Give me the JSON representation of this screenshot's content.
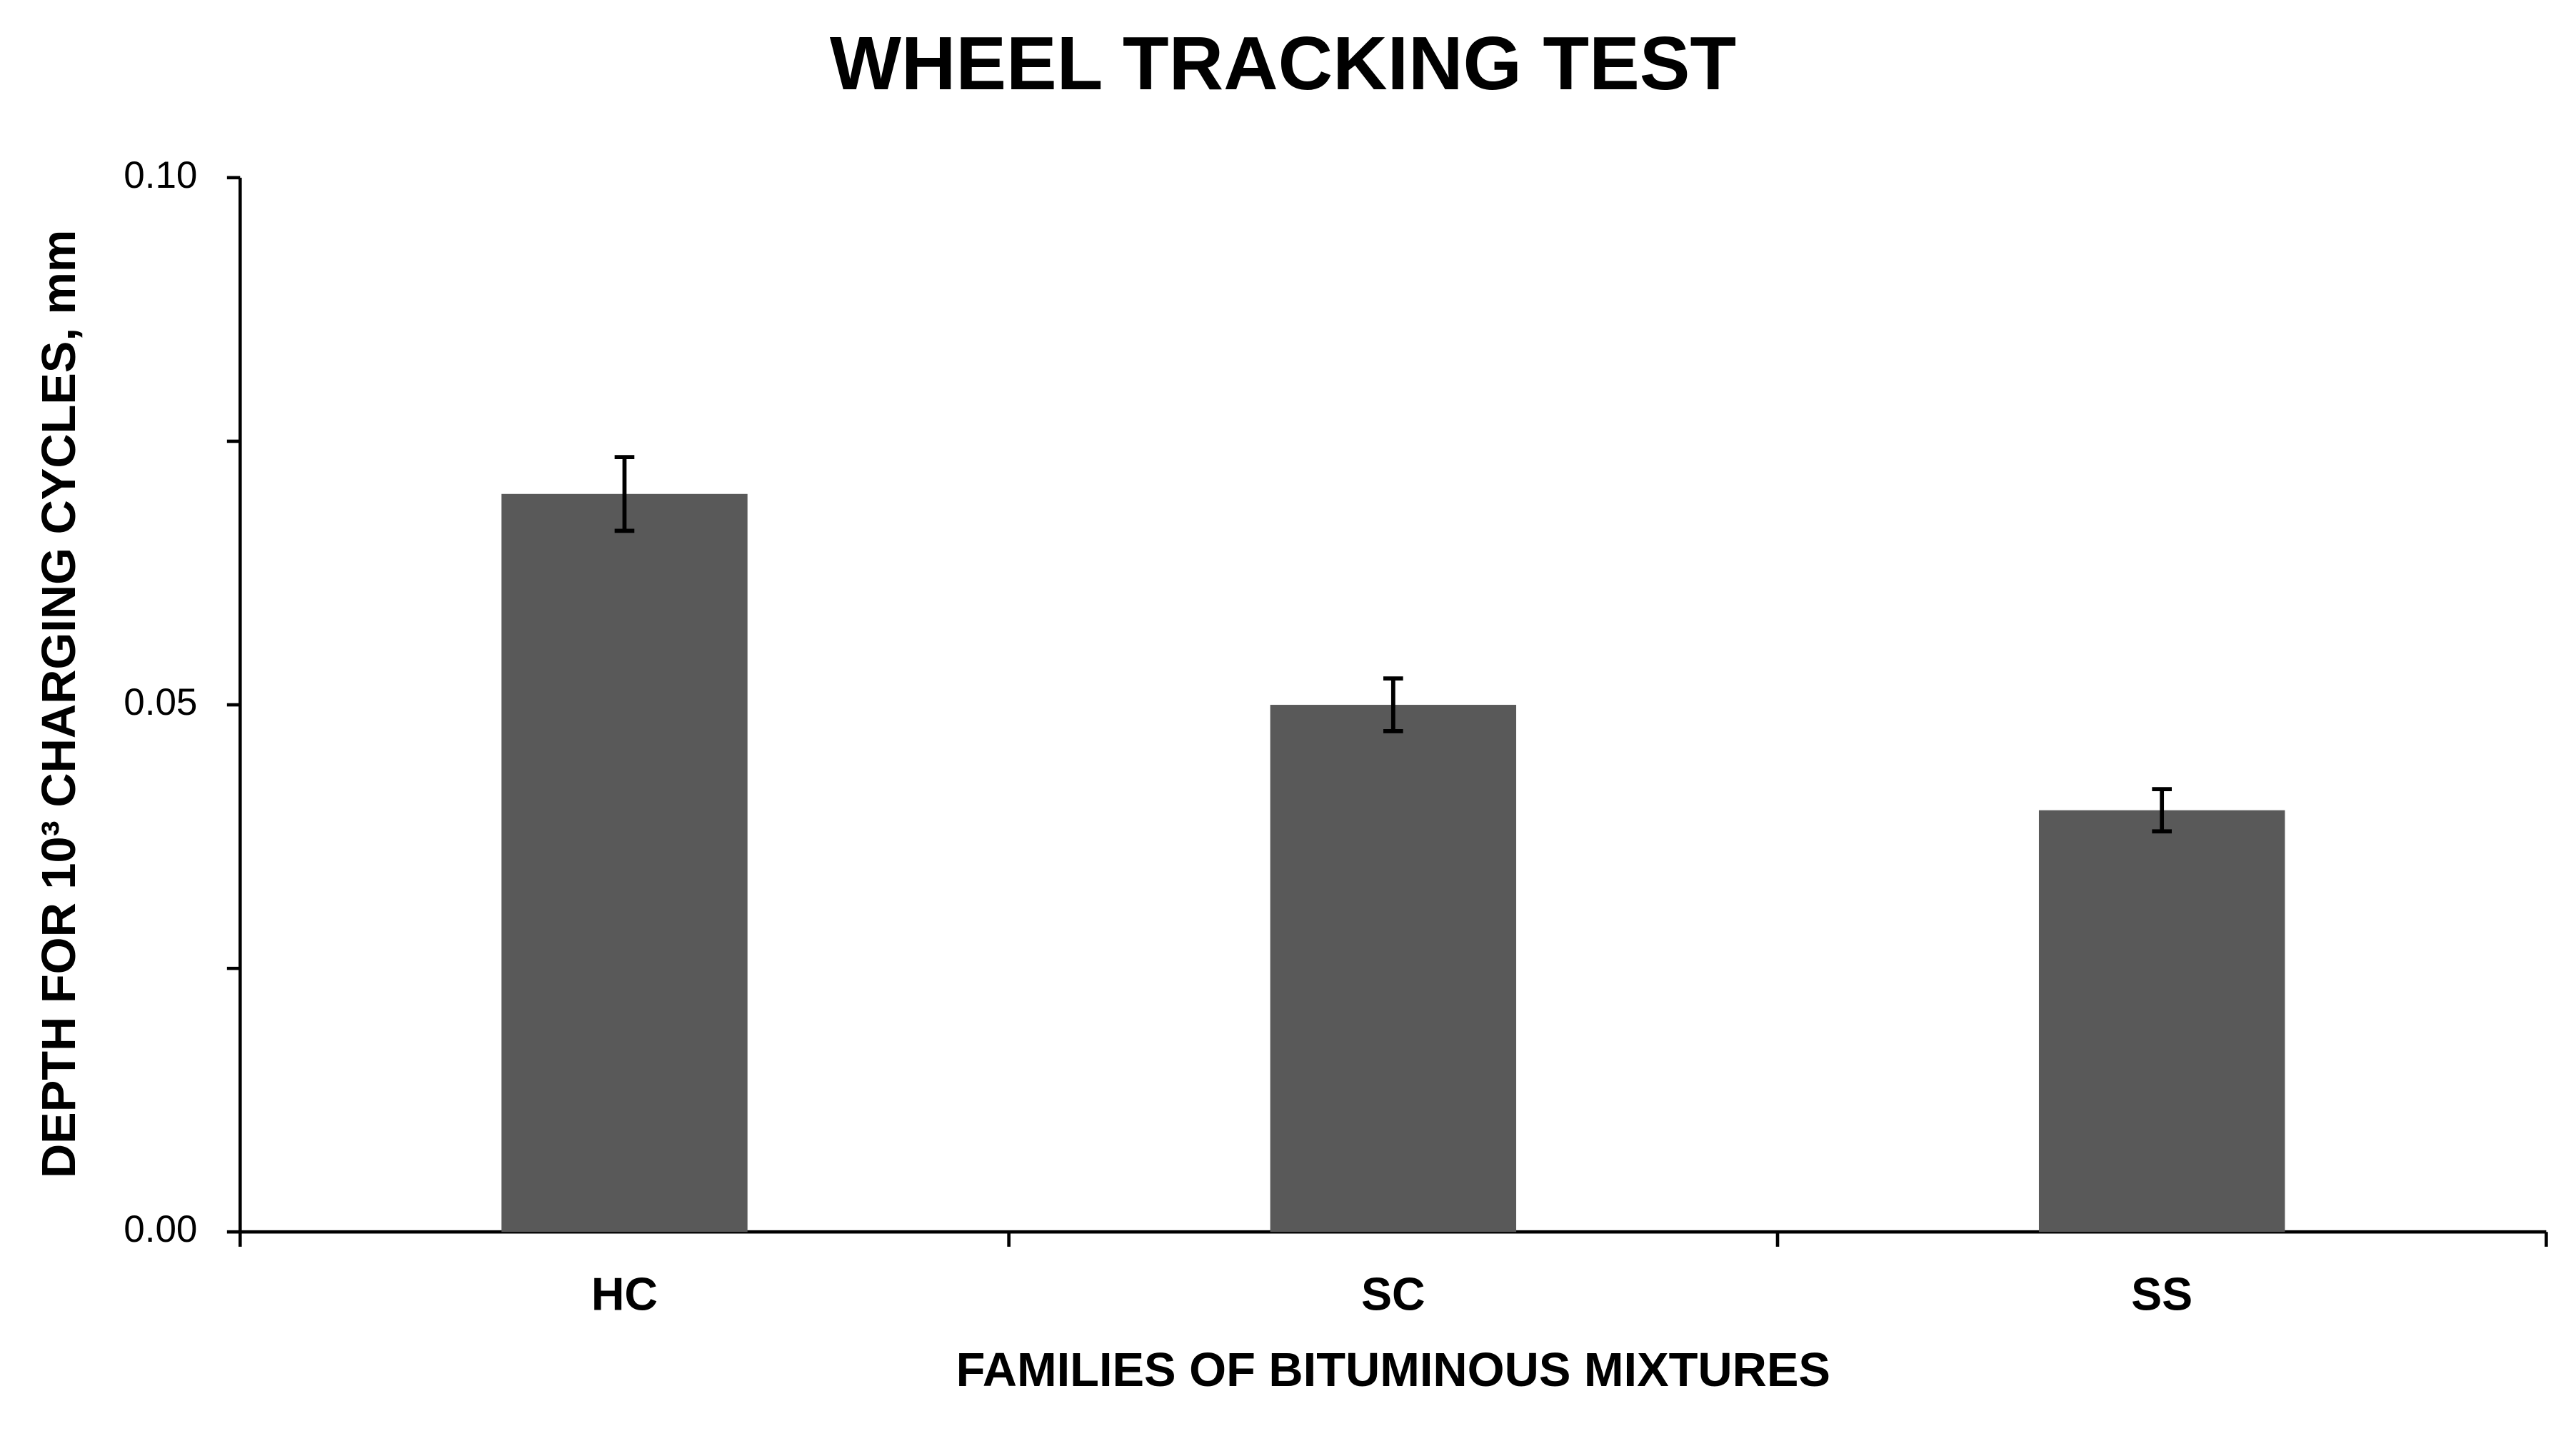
{
  "chart_data": {
    "type": "bar",
    "title": "WHEEL TRACKING TEST",
    "x_label": "FAMILIES OF BITUMINOUS MIXTURES",
    "y_label": "DEPTH FOR 10³ CHARGING CYCLES, mm",
    "categories": [
      "HC",
      "SC",
      "SS"
    ],
    "values": [
      0.07,
      0.05,
      0.04
    ],
    "errors": [
      0.0035,
      0.0025,
      0.002
    ],
    "color": "#595959",
    "ylim": [
      0,
      0.1
    ],
    "yticks": [
      {
        "value": 0,
        "label": "0.00"
      },
      0.05,
      {
        "value": 0.1,
        "label": "0.10"
      }
    ],
    "minor_yticks": [
      0.025,
      0.075
    ],
    "grid": false
  }
}
